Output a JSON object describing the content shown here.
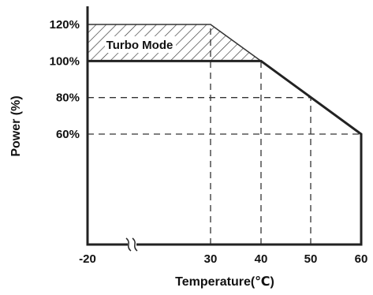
{
  "chart_data": {
    "type": "line",
    "xlabel": "Temperature(℃)",
    "ylabel": "Power (%)",
    "xlim": [
      -20,
      60
    ],
    "ylim": [
      0,
      120
    ],
    "x_ticks": [
      {
        "value": -20,
        "label": "-20"
      },
      {
        "value": 30,
        "label": "30"
      },
      {
        "value": 40,
        "label": "40"
      },
      {
        "value": 50,
        "label": "50"
      },
      {
        "value": 60,
        "label": "60"
      }
    ],
    "y_ticks": [
      {
        "value": 60,
        "label": "60%"
      },
      {
        "value": 80,
        "label": "80%"
      },
      {
        "value": 100,
        "label": "100%"
      },
      {
        "value": 120,
        "label": "120%"
      }
    ],
    "axis_break": true,
    "series": [
      {
        "x": [
          -20,
          40,
          60,
          60
        ],
        "y": [
          100,
          100,
          60,
          0
        ],
        "color": "#222222"
      }
    ],
    "turbo_region": {
      "label": "Turbo Mode",
      "upper": {
        "x": [
          -20,
          30,
          40
        ],
        "y": [
          120,
          120,
          100
        ]
      },
      "lower": {
        "x": [
          -20,
          40
        ],
        "y": [
          100,
          100
        ]
      },
      "pattern": "diagonal-hatch"
    },
    "guide_lines": [
      {
        "x": 30,
        "y_from": 0,
        "y_to": 120
      },
      {
        "x": 40,
        "y_from": 0,
        "y_to": 100
      },
      {
        "x": 50,
        "y_from": 0,
        "y_to": 80
      },
      {
        "y": 80,
        "x_from": -20,
        "x_to": 50
      },
      {
        "y": 60,
        "x_from": -20,
        "x_to": 60
      }
    ],
    "grid": false
  }
}
